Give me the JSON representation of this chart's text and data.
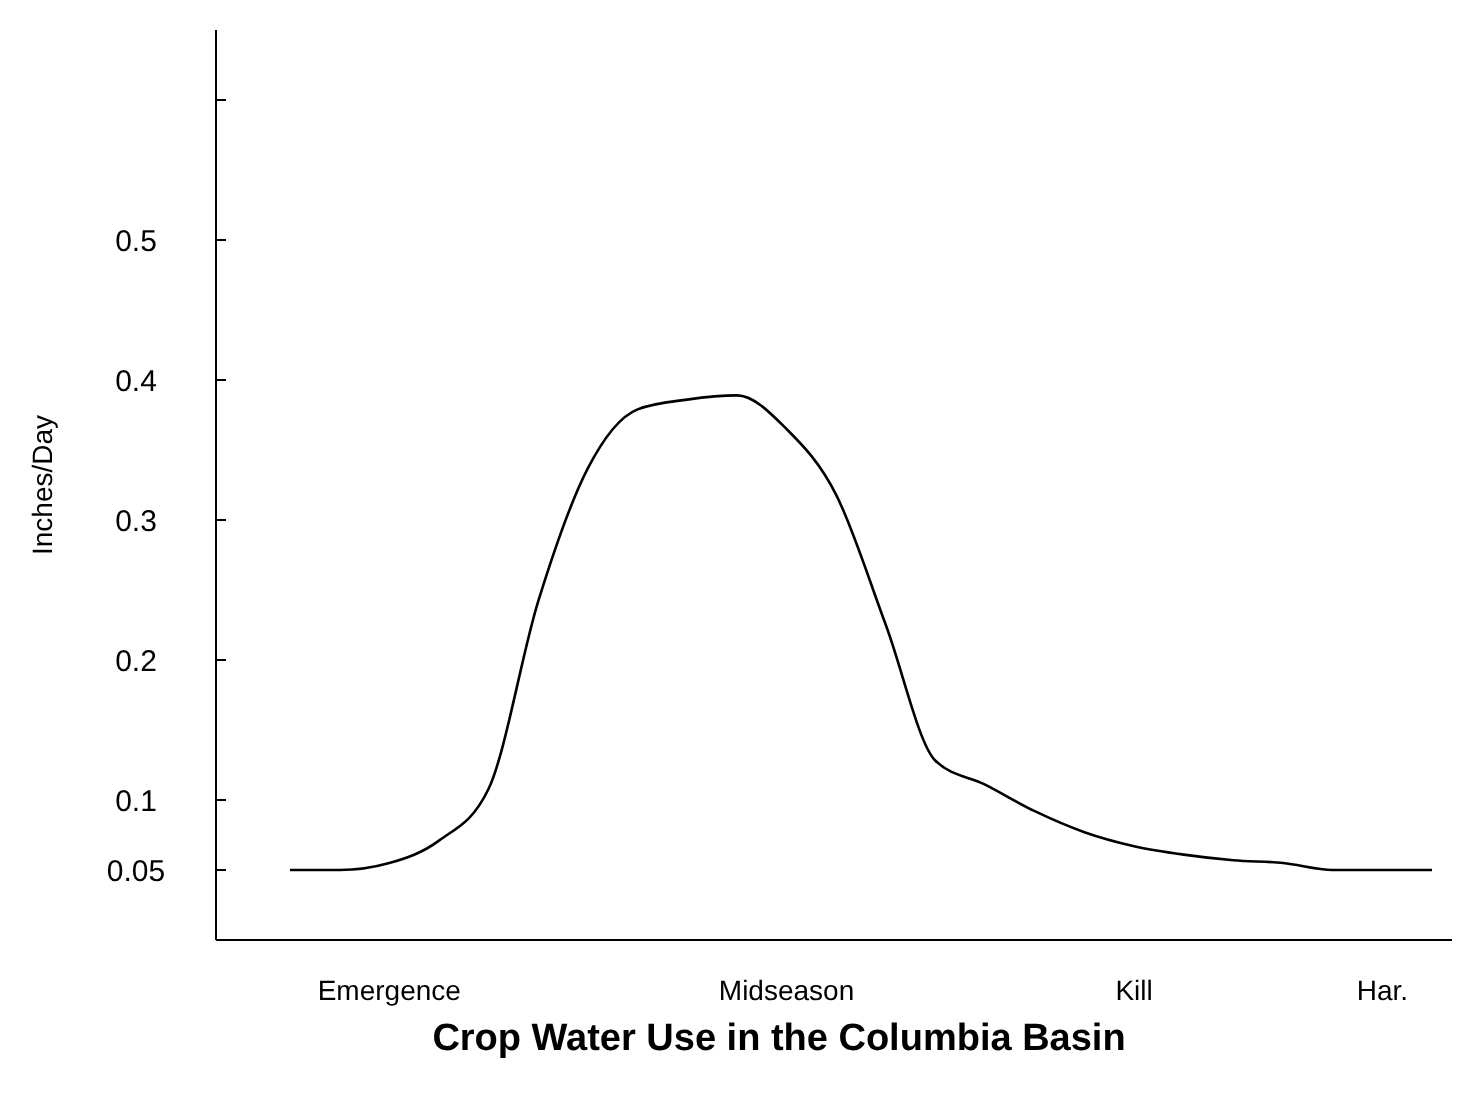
{
  "chart_data": {
    "type": "line",
    "title": "Crop Water Use in the Columbia Basin",
    "ylabel": "Inches/Day",
    "categories": [
      null,
      null,
      "Emergence",
      null,
      null,
      null,
      null,
      null,
      null,
      null,
      "Midseason",
      null,
      null,
      null,
      null,
      null,
      null,
      "Kill",
      null,
      null,
      null,
      null,
      "Har.",
      null
    ],
    "series": [
      {
        "color": "#000000",
        "values": [
          0.05,
          0.05,
          0.055,
          0.071,
          0.108,
          0.242,
          0.337,
          0.379,
          0.386,
          0.389,
          0.365,
          0.318,
          0.225,
          0.128,
          0.111,
          0.092,
          0.077,
          0.067,
          0.061,
          0.057,
          0.055,
          0.05,
          0.05,
          0.05
        ]
      }
    ],
    "ylim": [
      0,
      0.65
    ],
    "yticks": [
      0.05,
      0.1,
      0.2,
      0.3,
      0.4,
      0.5,
      {
        "value": 0.6,
        "label": null
      }
    ],
    "grid": false,
    "marker": "none",
    "line_style": "solid"
  }
}
